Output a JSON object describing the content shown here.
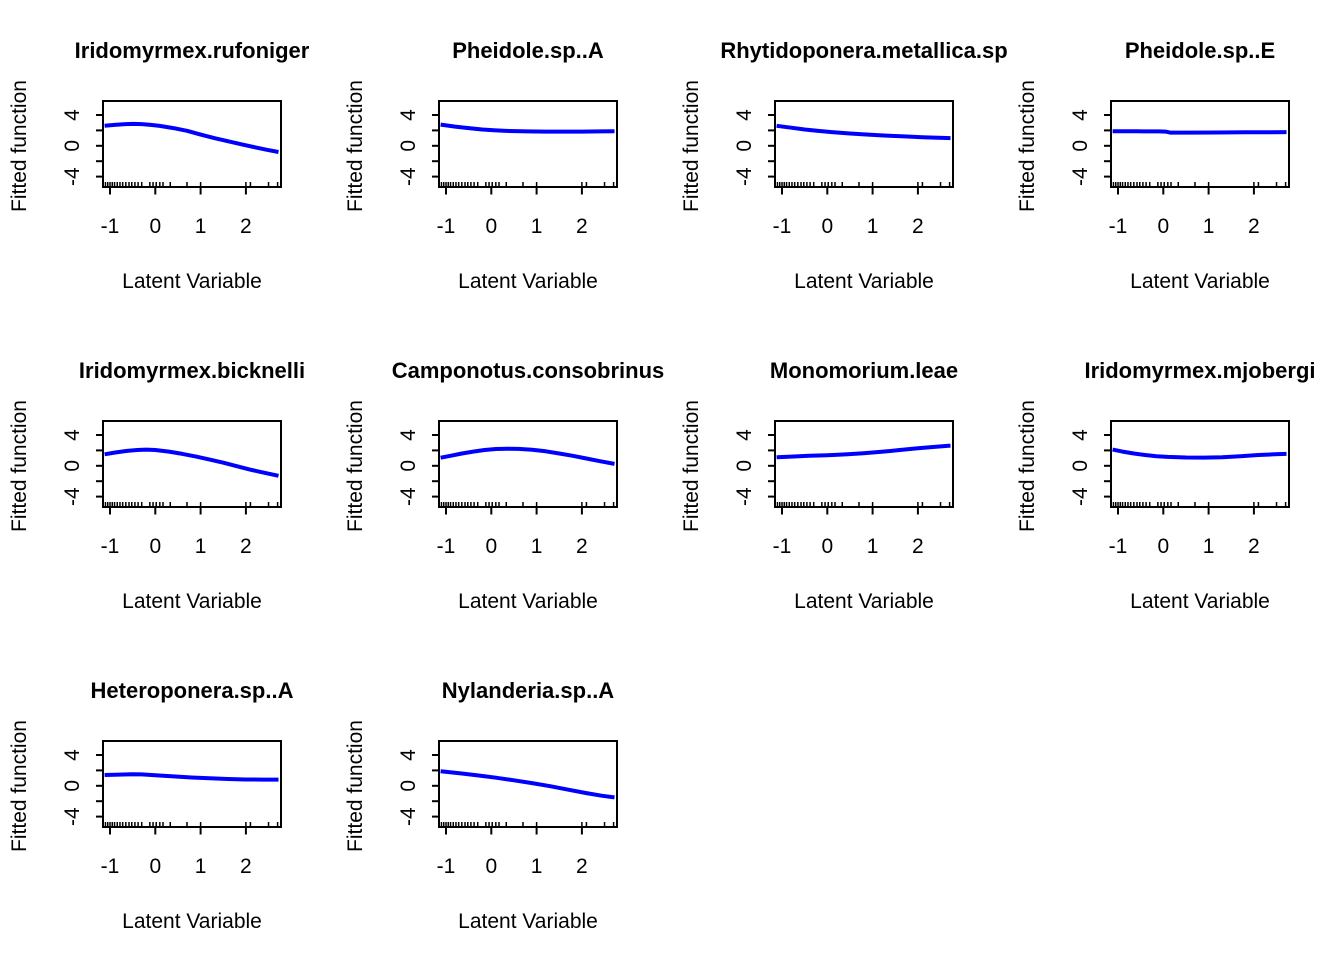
{
  "figure_title": "",
  "chart_data": {
    "type": "line",
    "xlabel": "Latent Variable",
    "ylabel": "Fitted function",
    "line_color": "#0000FF",
    "axis_color": "#000000",
    "background": "#ffffff",
    "xlim": [
      -1.16,
      2.78
    ],
    "ylim": [
      -5.4,
      5.8
    ],
    "x_ticks": [
      -1,
      0,
      1,
      2
    ],
    "x_tick_labels": [
      "-1",
      "0",
      "1",
      "2"
    ],
    "y_ticks": [
      -4,
      -2,
      0,
      2,
      4
    ],
    "y_labeled_ticks": [
      {
        "value": -4,
        "label": "-4"
      },
      {
        "value": 0,
        "label": "0"
      },
      {
        "value": 4,
        "label": "4"
      }
    ],
    "grid": false,
    "legend": "none",
    "layout": {
      "columns": 4,
      "rows": 3,
      "filled_panels": 10
    },
    "rug_x": [
      -1.15,
      -1.1,
      -1.05,
      -1.0,
      -0.95,
      -0.9,
      -0.84,
      -0.78,
      -0.72,
      -0.65,
      -0.58,
      -0.52,
      -0.45,
      -0.38,
      -0.3,
      -0.12,
      -0.05,
      0.02,
      0.1,
      0.17,
      0.33,
      0.7,
      1.0,
      2.0,
      2.1,
      2.5,
      2.7
    ],
    "panels": [
      {
        "title": "Iridomyrmex.rufoniger",
        "x": [
          -1.12,
          -0.9,
          -0.7,
          -0.5,
          -0.3,
          -0.1,
          0.1,
          0.4,
          0.7,
          1.0,
          1.3,
          1.6,
          1.9,
          2.2,
          2.45,
          2.72
        ],
        "y": [
          2.6,
          2.72,
          2.8,
          2.85,
          2.82,
          2.72,
          2.58,
          2.3,
          1.95,
          1.45,
          1.0,
          0.6,
          0.2,
          -0.2,
          -0.5,
          -0.8
        ]
      },
      {
        "title": "Pheidole.sp..A",
        "x": [
          -1.12,
          -0.8,
          -0.5,
          -0.2,
          0.1,
          0.4,
          0.8,
          1.2,
          1.6,
          2.0,
          2.4,
          2.72
        ],
        "y": [
          2.75,
          2.5,
          2.3,
          2.12,
          2.0,
          1.92,
          1.87,
          1.85,
          1.85,
          1.85,
          1.87,
          1.9
        ]
      },
      {
        "title": "Rhytidoponera.metallica.sp",
        "x": [
          -1.12,
          -0.8,
          -0.5,
          -0.2,
          0.1,
          0.5,
          0.9,
          1.3,
          1.7,
          2.1,
          2.45,
          2.72
        ],
        "y": [
          2.6,
          2.35,
          2.12,
          1.93,
          1.78,
          1.6,
          1.45,
          1.33,
          1.22,
          1.12,
          1.05,
          1.0
        ]
      },
      {
        "title": "Pheidole.sp..E",
        "x": [
          -1.12,
          -0.6,
          -0.1,
          0.05,
          0.15,
          0.6,
          1.2,
          1.8,
          2.4,
          2.72
        ],
        "y": [
          1.9,
          1.88,
          1.87,
          1.85,
          1.72,
          1.72,
          1.73,
          1.75,
          1.77,
          1.78
        ]
      },
      {
        "title": "Iridomyrmex.bicknelli",
        "x": [
          -1.12,
          -0.9,
          -0.65,
          -0.4,
          -0.2,
          0.0,
          0.3,
          0.6,
          0.9,
          1.2,
          1.5,
          1.8,
          2.1,
          2.4,
          2.72
        ],
        "y": [
          1.5,
          1.72,
          1.92,
          2.05,
          2.1,
          2.05,
          1.85,
          1.55,
          1.2,
          0.8,
          0.4,
          -0.05,
          -0.5,
          -0.9,
          -1.3
        ]
      },
      {
        "title": "Camponotus.consobrinus",
        "x": [
          -1.12,
          -0.9,
          -0.65,
          -0.4,
          -0.15,
          0.1,
          0.35,
          0.6,
          0.9,
          1.2,
          1.5,
          1.8,
          2.1,
          2.4,
          2.72
        ],
        "y": [
          1.05,
          1.3,
          1.6,
          1.85,
          2.05,
          2.18,
          2.22,
          2.2,
          2.08,
          1.88,
          1.6,
          1.3,
          0.95,
          0.6,
          0.25
        ]
      },
      {
        "title": "Monomorium.leae",
        "x": [
          -1.12,
          -0.8,
          -0.4,
          0.0,
          0.4,
          0.8,
          1.2,
          1.6,
          2.0,
          2.4,
          2.72
        ],
        "y": [
          1.1,
          1.2,
          1.3,
          1.38,
          1.48,
          1.62,
          1.82,
          2.05,
          2.28,
          2.48,
          2.62
        ]
      },
      {
        "title": "Iridomyrmex.mjobergi",
        "x": [
          -1.12,
          -0.9,
          -0.65,
          -0.4,
          -0.15,
          0.1,
          0.5,
          0.9,
          1.3,
          1.7,
          2.1,
          2.45,
          2.72
        ],
        "y": [
          2.1,
          1.85,
          1.6,
          1.4,
          1.25,
          1.15,
          1.08,
          1.07,
          1.12,
          1.25,
          1.4,
          1.5,
          1.55
        ]
      },
      {
        "title": "Heteroponera.sp..A",
        "x": [
          -1.12,
          -0.8,
          -0.5,
          -0.3,
          0.0,
          0.4,
          0.8,
          1.2,
          1.6,
          2.0,
          2.4,
          2.72
        ],
        "y": [
          1.4,
          1.45,
          1.5,
          1.48,
          1.38,
          1.22,
          1.08,
          0.97,
          0.88,
          0.82,
          0.8,
          0.8
        ]
      },
      {
        "title": "Nylanderia.sp..A",
        "x": [
          -1.12,
          -0.7,
          -0.3,
          0.1,
          0.5,
          0.9,
          1.3,
          1.7,
          2.1,
          2.45,
          2.72
        ],
        "y": [
          1.9,
          1.62,
          1.35,
          1.05,
          0.72,
          0.35,
          -0.05,
          -0.5,
          -0.95,
          -1.3,
          -1.5
        ]
      }
    ]
  }
}
